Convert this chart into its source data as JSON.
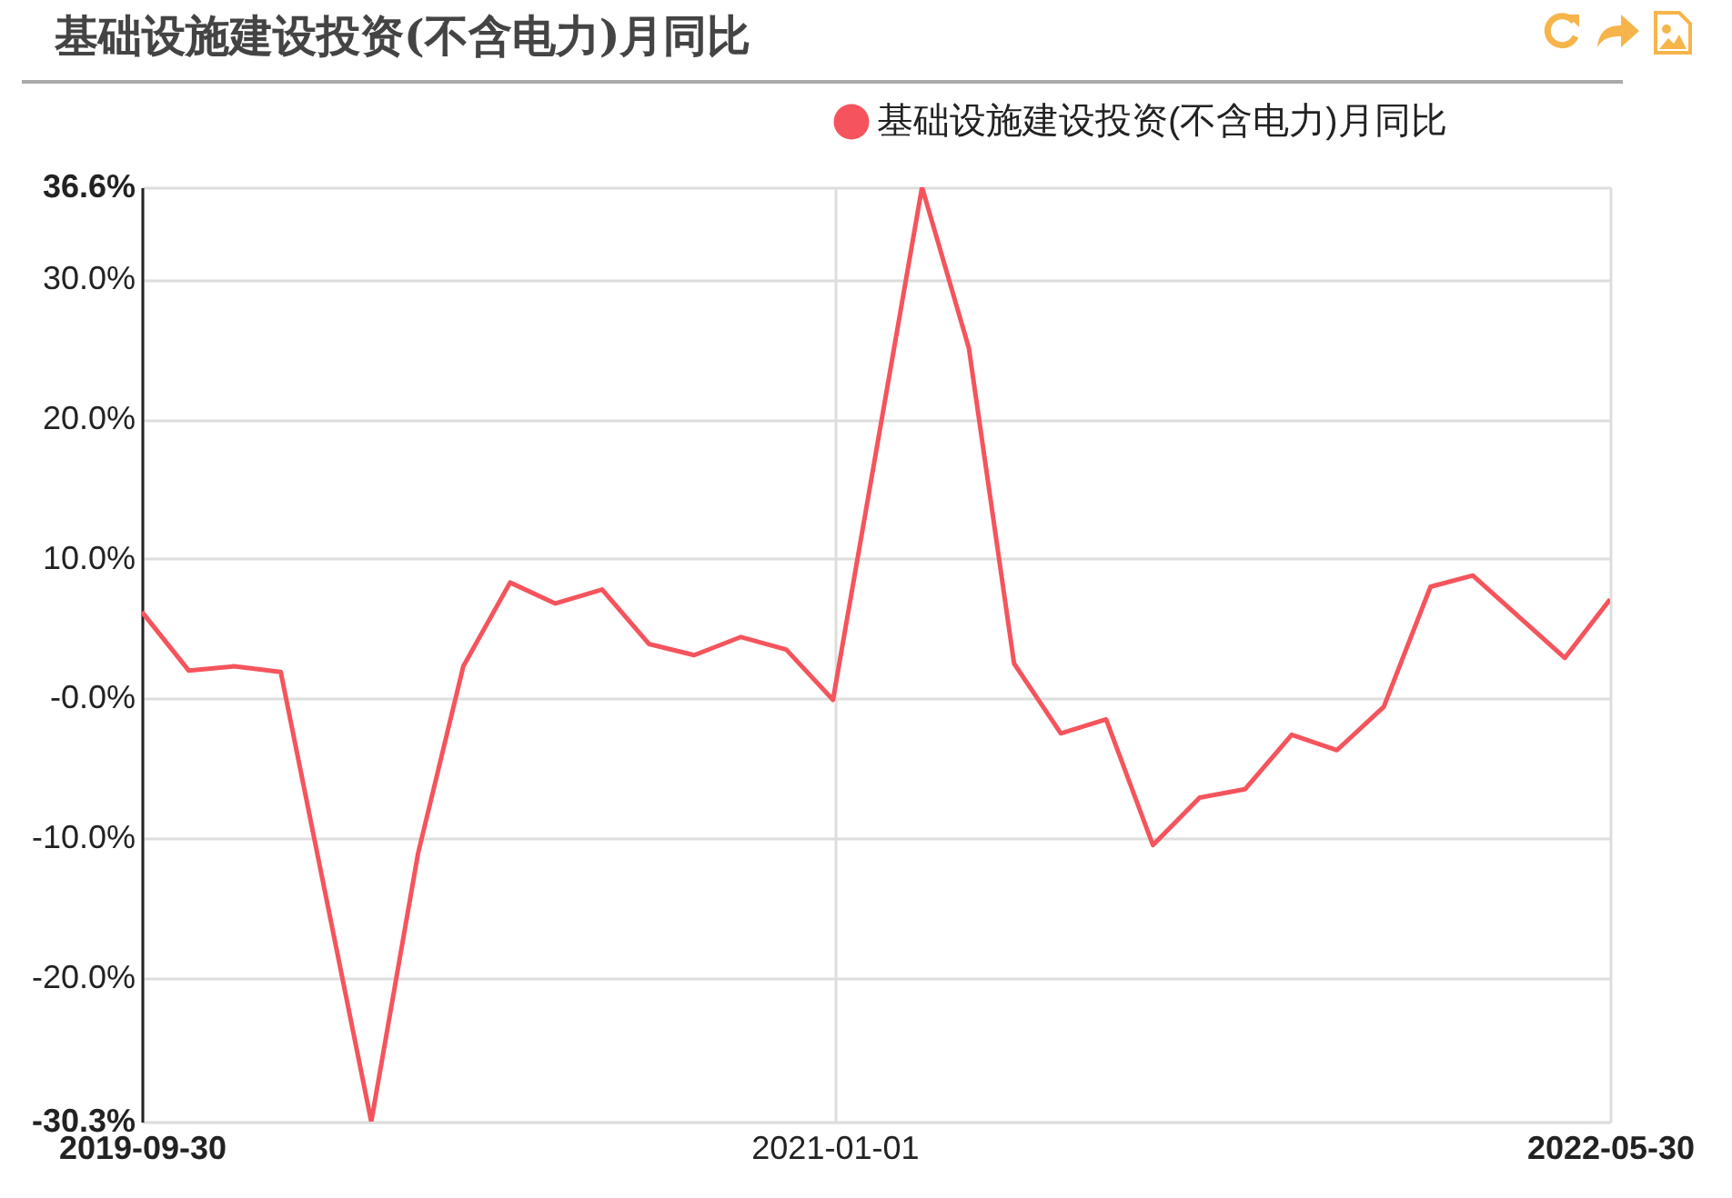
{
  "chart_data": {
    "type": "line",
    "title": "基础设施建设投资(不含电力)月同比",
    "x": [
      "2019-09-30",
      "2019-10-31",
      "2019-11-30",
      "2019-12-31",
      "2020-02-29",
      "2020-03-31",
      "2020-04-30",
      "2020-05-31",
      "2020-06-30",
      "2020-07-31",
      "2020-08-31",
      "2020-09-30",
      "2020-10-31",
      "2020-11-30",
      "2020-12-31",
      "2021-02-28",
      "2021-03-31",
      "2021-04-30",
      "2021-05-31",
      "2021-06-30",
      "2021-07-31",
      "2021-08-31",
      "2021-09-30",
      "2021-10-31",
      "2021-11-30",
      "2021-12-31",
      "2022-01-31",
      "2022-02-28",
      "2022-04-30",
      "2022-05-30"
    ],
    "series": [
      {
        "name": "基础设施建设投资(不含电力)月同比",
        "color": "#f5545c",
        "values": [
          6.2,
          2.0,
          2.3,
          1.9,
          -30.3,
          -11.1,
          2.3,
          8.3,
          6.8,
          7.8,
          3.9,
          3.1,
          4.4,
          3.5,
          -0.1,
          36.6,
          25.1,
          2.5,
          -2.5,
          -1.5,
          -10.5,
          -7.1,
          -6.5,
          -2.6,
          -3.7,
          -0.6,
          8.0,
          8.8,
          2.9,
          7.1
        ]
      }
    ],
    "xlim": [
      "2019-09-30",
      "2022-05-30"
    ],
    "xticks": [
      "2019-09-30",
      "2021-01-01",
      "2022-05-30"
    ],
    "ylim": [
      -30.3,
      36.6
    ],
    "yticks": [
      {
        "value": -30.3,
        "label": "-30.3%"
      },
      {
        "value": -20,
        "label": "-20.0%"
      },
      {
        "value": -10,
        "label": "-10.0%"
      },
      {
        "value": 0,
        "label": "-0.0%"
      },
      {
        "value": 10,
        "label": "10.0%"
      },
      {
        "value": 20,
        "label": "20.0%"
      },
      {
        "value": 30,
        "label": "30.0%"
      },
      {
        "value": 36.6,
        "label": "36.6%"
      }
    ],
    "grid": true,
    "legend": "top right",
    "marker": "none",
    "line_style": "solid"
  }
}
